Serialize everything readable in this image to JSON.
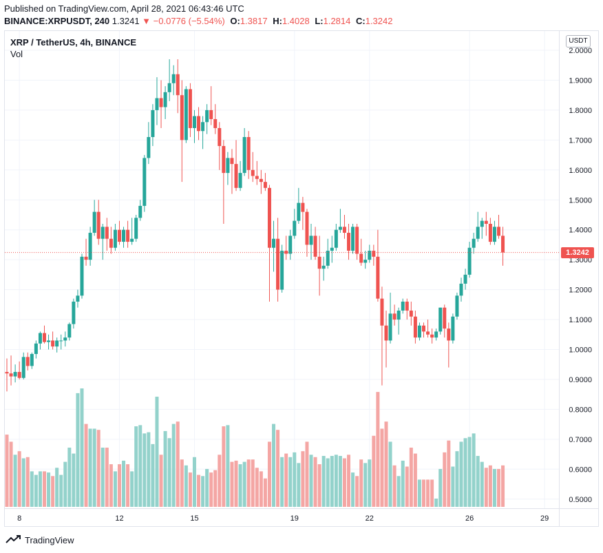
{
  "header": {
    "published": "Published on TradingView.com, April 28, 2021 06:43:46 UTC",
    "symbol_line": "BINANCE:XRPUSDT, 240",
    "last": "1.3241",
    "change_arrow": "▼",
    "change": "−0.0776 (−5.54%)",
    "o_label": "O:",
    "o_value": "1.3817",
    "h_label": "H:",
    "h_value": "1.4028",
    "l_label": "L:",
    "l_value": "1.2814",
    "c_label": "C:",
    "c_value": "1.3242"
  },
  "legend": {
    "title": "XRP / TetherUS, 4h, BINANCE",
    "volume": "Vol"
  },
  "currency_button": "USDT",
  "last_price_tag": "1.3242",
  "footer": {
    "brand": "TradingView"
  },
  "colors": {
    "up": "#26a69a",
    "down": "#ef5350",
    "vol_up": "#93d2cb",
    "vol_down": "#f4a6a4",
    "grid": "#f0f3fa",
    "axis_text": "#131722"
  },
  "chart_data": {
    "type": "candlestick",
    "symbol": "XRP / TetherUS",
    "interval": "4h",
    "exchange": "BINANCE",
    "ylim": [
      0.46,
      2.02
    ],
    "y_ticks": [
      "2.0000",
      "1.9000",
      "1.8000",
      "1.7000",
      "1.6000",
      "1.5000",
      "1.4000",
      "1.3000",
      "1.2000",
      "1.1000",
      "1.0000",
      "0.9000",
      "0.8000",
      "0.7000",
      "0.6000",
      "0.5000"
    ],
    "x_ticks": [
      "8",
      "12",
      "15",
      "19",
      "22",
      "26",
      "29"
    ],
    "last_price": 1.3242,
    "candles": [
      {
        "o": 0.925,
        "h": 0.97,
        "l": 0.86,
        "c": 0.92
      },
      {
        "o": 0.92,
        "h": 0.98,
        "l": 0.88,
        "c": 0.91
      },
      {
        "o": 0.91,
        "h": 0.95,
        "l": 0.89,
        "c": 0.925
      },
      {
        "o": 0.925,
        "h": 0.96,
        "l": 0.9,
        "c": 0.905
      },
      {
        "o": 0.905,
        "h": 0.99,
        "l": 0.9,
        "c": 0.975
      },
      {
        "o": 0.975,
        "h": 0.99,
        "l": 0.93,
        "c": 0.945
      },
      {
        "o": 0.945,
        "h": 0.99,
        "l": 0.935,
        "c": 0.985
      },
      {
        "o": 0.985,
        "h": 1.03,
        "l": 0.97,
        "c": 1.02
      },
      {
        "o": 1.02,
        "h": 1.06,
        "l": 1.0,
        "c": 1.055
      },
      {
        "o": 1.055,
        "h": 1.08,
        "l": 1.02,
        "c": 1.025
      },
      {
        "o": 1.025,
        "h": 1.05,
        "l": 1.0,
        "c": 1.03
      },
      {
        "o": 1.03,
        "h": 1.06,
        "l": 1.0,
        "c": 1.01
      },
      {
        "o": 1.01,
        "h": 1.04,
        "l": 0.99,
        "c": 1.03
      },
      {
        "o": 1.03,
        "h": 1.05,
        "l": 1.0,
        "c": 1.03
      },
      {
        "o": 1.03,
        "h": 1.06,
        "l": 1.01,
        "c": 1.04
      },
      {
        "o": 1.04,
        "h": 1.09,
        "l": 1.03,
        "c": 1.085
      },
      {
        "o": 1.085,
        "h": 1.17,
        "l": 1.07,
        "c": 1.16
      },
      {
        "o": 1.16,
        "h": 1.2,
        "l": 1.14,
        "c": 1.18
      },
      {
        "o": 1.18,
        "h": 1.32,
        "l": 1.17,
        "c": 1.31
      },
      {
        "o": 1.31,
        "h": 1.37,
        "l": 1.28,
        "c": 1.3
      },
      {
        "o": 1.3,
        "h": 1.41,
        "l": 1.28,
        "c": 1.39
      },
      {
        "o": 1.39,
        "h": 1.5,
        "l": 1.38,
        "c": 1.46
      },
      {
        "o": 1.46,
        "h": 1.5,
        "l": 1.35,
        "c": 1.37
      },
      {
        "o": 1.37,
        "h": 1.42,
        "l": 1.3,
        "c": 1.41
      },
      {
        "o": 1.41,
        "h": 1.44,
        "l": 1.33,
        "c": 1.37
      },
      {
        "o": 1.37,
        "h": 1.41,
        "l": 1.32,
        "c": 1.34
      },
      {
        "o": 1.34,
        "h": 1.42,
        "l": 1.33,
        "c": 1.4
      },
      {
        "o": 1.4,
        "h": 1.43,
        "l": 1.35,
        "c": 1.36
      },
      {
        "o": 1.36,
        "h": 1.41,
        "l": 1.34,
        "c": 1.4
      },
      {
        "o": 1.4,
        "h": 1.43,
        "l": 1.34,
        "c": 1.36
      },
      {
        "o": 1.36,
        "h": 1.44,
        "l": 1.35,
        "c": 1.37
      },
      {
        "o": 1.37,
        "h": 1.45,
        "l": 1.36,
        "c": 1.44
      },
      {
        "o": 1.44,
        "h": 1.5,
        "l": 1.43,
        "c": 1.48
      },
      {
        "o": 1.48,
        "h": 1.65,
        "l": 1.46,
        "c": 1.64
      },
      {
        "o": 1.64,
        "h": 1.76,
        "l": 1.62,
        "c": 1.71
      },
      {
        "o": 1.71,
        "h": 1.82,
        "l": 1.68,
        "c": 1.8
      },
      {
        "o": 1.8,
        "h": 1.91,
        "l": 1.75,
        "c": 1.84
      },
      {
        "o": 1.84,
        "h": 1.9,
        "l": 1.74,
        "c": 1.81
      },
      {
        "o": 1.81,
        "h": 1.88,
        "l": 1.77,
        "c": 1.86
      },
      {
        "o": 1.86,
        "h": 1.97,
        "l": 1.83,
        "c": 1.89
      },
      {
        "o": 1.89,
        "h": 1.95,
        "l": 1.85,
        "c": 1.92
      },
      {
        "o": 1.92,
        "h": 1.97,
        "l": 1.79,
        "c": 1.85
      },
      {
        "o": 1.85,
        "h": 1.9,
        "l": 1.56,
        "c": 1.7
      },
      {
        "o": 1.7,
        "h": 1.88,
        "l": 1.69,
        "c": 1.87
      },
      {
        "o": 1.87,
        "h": 1.89,
        "l": 1.71,
        "c": 1.74
      },
      {
        "o": 1.74,
        "h": 1.8,
        "l": 1.69,
        "c": 1.78
      },
      {
        "o": 1.78,
        "h": 1.81,
        "l": 1.7,
        "c": 1.73
      },
      {
        "o": 1.73,
        "h": 1.78,
        "l": 1.67,
        "c": 1.76
      },
      {
        "o": 1.76,
        "h": 1.82,
        "l": 1.72,
        "c": 1.8
      },
      {
        "o": 1.8,
        "h": 1.88,
        "l": 1.75,
        "c": 1.77
      },
      {
        "o": 1.77,
        "h": 1.82,
        "l": 1.72,
        "c": 1.74
      },
      {
        "o": 1.74,
        "h": 1.76,
        "l": 1.6,
        "c": 1.68
      },
      {
        "o": 1.68,
        "h": 1.7,
        "l": 1.42,
        "c": 1.59
      },
      {
        "o": 1.59,
        "h": 1.66,
        "l": 1.55,
        "c": 1.64
      },
      {
        "o": 1.64,
        "h": 1.67,
        "l": 1.52,
        "c": 1.62
      },
      {
        "o": 1.62,
        "h": 1.7,
        "l": 1.53,
        "c": 1.54
      },
      {
        "o": 1.54,
        "h": 1.63,
        "l": 1.53,
        "c": 1.59
      },
      {
        "o": 1.59,
        "h": 1.74,
        "l": 1.58,
        "c": 1.71
      },
      {
        "o": 1.71,
        "h": 1.73,
        "l": 1.57,
        "c": 1.6
      },
      {
        "o": 1.6,
        "h": 1.66,
        "l": 1.56,
        "c": 1.58
      },
      {
        "o": 1.58,
        "h": 1.63,
        "l": 1.55,
        "c": 1.57
      },
      {
        "o": 1.57,
        "h": 1.6,
        "l": 1.52,
        "c": 1.56
      },
      {
        "o": 1.56,
        "h": 1.59,
        "l": 1.53,
        "c": 1.54
      },
      {
        "o": 1.54,
        "h": 1.55,
        "l": 1.16,
        "c": 1.34
      },
      {
        "o": 1.34,
        "h": 1.43,
        "l": 1.26,
        "c": 1.37
      },
      {
        "o": 1.37,
        "h": 1.44,
        "l": 1.16,
        "c": 1.2
      },
      {
        "o": 1.2,
        "h": 1.35,
        "l": 1.19,
        "c": 1.33
      },
      {
        "o": 1.33,
        "h": 1.38,
        "l": 1.3,
        "c": 1.32
      },
      {
        "o": 1.32,
        "h": 1.4,
        "l": 1.3,
        "c": 1.38
      },
      {
        "o": 1.38,
        "h": 1.47,
        "l": 1.37,
        "c": 1.43
      },
      {
        "o": 1.43,
        "h": 1.54,
        "l": 1.42,
        "c": 1.49
      },
      {
        "o": 1.49,
        "h": 1.51,
        "l": 1.4,
        "c": 1.46
      },
      {
        "o": 1.46,
        "h": 1.47,
        "l": 1.31,
        "c": 1.35
      },
      {
        "o": 1.35,
        "h": 1.42,
        "l": 1.3,
        "c": 1.38
      },
      {
        "o": 1.38,
        "h": 1.41,
        "l": 1.3,
        "c": 1.31
      },
      {
        "o": 1.31,
        "h": 1.38,
        "l": 1.18,
        "c": 1.27
      },
      {
        "o": 1.27,
        "h": 1.31,
        "l": 1.23,
        "c": 1.28
      },
      {
        "o": 1.28,
        "h": 1.37,
        "l": 1.27,
        "c": 1.33
      },
      {
        "o": 1.33,
        "h": 1.38,
        "l": 1.29,
        "c": 1.34
      },
      {
        "o": 1.34,
        "h": 1.42,
        "l": 1.33,
        "c": 1.4
      },
      {
        "o": 1.4,
        "h": 1.47,
        "l": 1.39,
        "c": 1.41
      },
      {
        "o": 1.41,
        "h": 1.45,
        "l": 1.37,
        "c": 1.39
      },
      {
        "o": 1.39,
        "h": 1.42,
        "l": 1.3,
        "c": 1.33
      },
      {
        "o": 1.33,
        "h": 1.42,
        "l": 1.32,
        "c": 1.41
      },
      {
        "o": 1.41,
        "h": 1.42,
        "l": 1.3,
        "c": 1.32
      },
      {
        "o": 1.32,
        "h": 1.37,
        "l": 1.28,
        "c": 1.29
      },
      {
        "o": 1.29,
        "h": 1.33,
        "l": 1.27,
        "c": 1.3
      },
      {
        "o": 1.3,
        "h": 1.35,
        "l": 1.29,
        "c": 1.33
      },
      {
        "o": 1.33,
        "h": 1.35,
        "l": 1.28,
        "c": 1.31
      },
      {
        "o": 1.31,
        "h": 1.4,
        "l": 1.16,
        "c": 1.17
      },
      {
        "o": 1.17,
        "h": 1.21,
        "l": 0.88,
        "c": 1.08
      },
      {
        "o": 1.08,
        "h": 1.13,
        "l": 0.94,
        "c": 1.03
      },
      {
        "o": 1.03,
        "h": 1.19,
        "l": 1.02,
        "c": 1.12
      },
      {
        "o": 1.12,
        "h": 1.15,
        "l": 1.08,
        "c": 1.1
      },
      {
        "o": 1.1,
        "h": 1.14,
        "l": 1.05,
        "c": 1.13
      },
      {
        "o": 1.13,
        "h": 1.17,
        "l": 1.12,
        "c": 1.16
      },
      {
        "o": 1.16,
        "h": 1.17,
        "l": 1.1,
        "c": 1.13
      },
      {
        "o": 1.13,
        "h": 1.16,
        "l": 1.08,
        "c": 1.11
      },
      {
        "o": 1.11,
        "h": 1.13,
        "l": 1.02,
        "c": 1.04
      },
      {
        "o": 1.04,
        "h": 1.09,
        "l": 1.03,
        "c": 1.08
      },
      {
        "o": 1.08,
        "h": 1.09,
        "l": 1.04,
        "c": 1.06
      },
      {
        "o": 1.06,
        "h": 1.1,
        "l": 1.04,
        "c": 1.05
      },
      {
        "o": 1.05,
        "h": 1.07,
        "l": 1.02,
        "c": 1.04
      },
      {
        "o": 1.04,
        "h": 1.07,
        "l": 1.03,
        "c": 1.06
      },
      {
        "o": 1.06,
        "h": 1.14,
        "l": 1.05,
        "c": 1.14
      },
      {
        "o": 1.14,
        "h": 1.15,
        "l": 1.04,
        "c": 1.07
      },
      {
        "o": 1.07,
        "h": 1.09,
        "l": 0.94,
        "c": 1.03
      },
      {
        "o": 1.03,
        "h": 1.12,
        "l": 1.02,
        "c": 1.11
      },
      {
        "o": 1.11,
        "h": 1.19,
        "l": 1.1,
        "c": 1.18
      },
      {
        "o": 1.18,
        "h": 1.24,
        "l": 1.16,
        "c": 1.22
      },
      {
        "o": 1.22,
        "h": 1.27,
        "l": 1.2,
        "c": 1.25
      },
      {
        "o": 1.25,
        "h": 1.36,
        "l": 1.24,
        "c": 1.34
      },
      {
        "o": 1.34,
        "h": 1.39,
        "l": 1.32,
        "c": 1.37
      },
      {
        "o": 1.37,
        "h": 1.46,
        "l": 1.36,
        "c": 1.41
      },
      {
        "o": 1.41,
        "h": 1.44,
        "l": 1.37,
        "c": 1.43
      },
      {
        "o": 1.43,
        "h": 1.46,
        "l": 1.38,
        "c": 1.42
      },
      {
        "o": 1.42,
        "h": 1.44,
        "l": 1.35,
        "c": 1.36
      },
      {
        "o": 1.36,
        "h": 1.43,
        "l": 1.35,
        "c": 1.41
      },
      {
        "o": 1.41,
        "h": 1.45,
        "l": 1.37,
        "c": 1.38
      },
      {
        "o": 1.38,
        "h": 1.41,
        "l": 1.28,
        "c": 1.3242
      }
    ],
    "volume_unit": "relative",
    "volumes": [
      0.61,
      0.55,
      0.44,
      0.47,
      0.41,
      0.42,
      0.3,
      0.27,
      0.3,
      0.3,
      0.29,
      0.26,
      0.33,
      0.27,
      0.38,
      0.5,
      0.45,
      0.96,
      1.0,
      0.7,
      0.66,
      0.66,
      0.65,
      0.5,
      0.5,
      0.36,
      0.3,
      0.36,
      0.39,
      0.36,
      0.3,
      0.68,
      0.69,
      0.62,
      0.63,
      0.53,
      0.93,
      0.44,
      0.64,
      0.58,
      0.7,
      0.72,
      0.4,
      0.35,
      0.29,
      0.42,
      0.27,
      0.26,
      0.32,
      0.29,
      0.31,
      0.44,
      0.68,
      0.69,
      0.38,
      0.39,
      0.36,
      0.38,
      0.4,
      0.4,
      0.33,
      0.3,
      0.24,
      0.55,
      0.7,
      0.65,
      0.42,
      0.45,
      0.42,
      0.46,
      0.37,
      0.47,
      0.55,
      0.44,
      0.42,
      0.36,
      0.43,
      0.41,
      0.43,
      0.44,
      0.43,
      0.41,
      0.44,
      0.29,
      0.26,
      0.4,
      0.37,
      0.4,
      0.6,
      0.97,
      0.66,
      0.72,
      0.55,
      0.35,
      0.26,
      0.39,
      0.34,
      0.5,
      0.45,
      0.23,
      0.23,
      0.23,
      0.23,
      0.07,
      0.32,
      0.46,
      0.56,
      0.34,
      0.47,
      0.55,
      0.58,
      0.59,
      0.62,
      0.43,
      0.38,
      0.33,
      0.35,
      0.32,
      0.32,
      0.35
    ]
  }
}
